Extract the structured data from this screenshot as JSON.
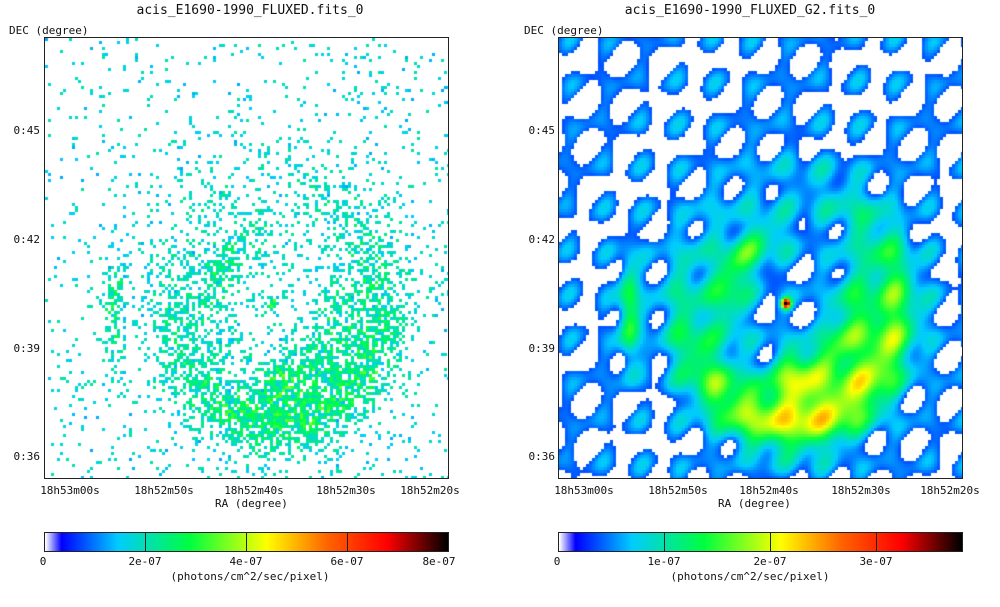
{
  "chart_data": [
    {
      "type": "heatmap",
      "title": "acis_E1690-1990_FLUXED.fits_0",
      "xlabel": "RA (degree)",
      "ylabel": "DEC (degree)",
      "xticks": [
        "18h53m00s",
        "18h52m50s",
        "18h52m40s",
        "18h52m30s",
        "18h52m20s"
      ],
      "yticks": [
        "0:45",
        "0:42",
        "0:39",
        "0:36"
      ],
      "colorbar": {
        "min": 0,
        "max": 8e-07,
        "ticks": [
          "0",
          "2e-07",
          "4e-07",
          "6e-07",
          "8e-07"
        ],
        "unit": "(photons/cm^2/sec/pixel)"
      },
      "appearance": "sparse"
    },
    {
      "type": "heatmap",
      "title": "acis_E1690-1990_FLUXED_G2.fits_0",
      "xlabel": "RA (degree)",
      "ylabel": "DEC (degree)",
      "xticks": [
        "18h53m00s",
        "18h52m50s",
        "18h52m40s",
        "18h52m30s",
        "18h52m20s"
      ],
      "yticks": [
        "0:45",
        "0:42",
        "0:39",
        "0:36"
      ],
      "colorbar": {
        "min": 0,
        "max": 3.8e-07,
        "ticks": [
          "0",
          "1e-07",
          "2e-07",
          "3e-07"
        ],
        "unit": "(photons/cm^2/sec/pixel)"
      },
      "appearance": "smoothed"
    }
  ],
  "colors": {
    "cmap": [
      "#ffffff",
      "#0000ff",
      "#00ccff",
      "#00ff40",
      "#ffff00",
      "#ff6600",
      "#ff0000",
      "#000000"
    ]
  }
}
